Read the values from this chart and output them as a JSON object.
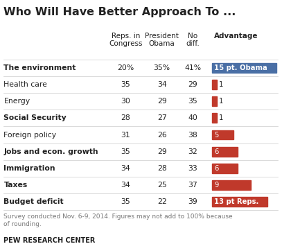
{
  "title": "Who Will Have Better Approach To ...",
  "col_headers": [
    "Reps. in\nCongress",
    "President\nObama",
    "No\ndiff.",
    "Advantage"
  ],
  "rows": [
    {
      "issue": "The environment",
      "reps": "20%",
      "obama": "35%",
      "nodiff": "41%",
      "adv_val": 15,
      "adv_label": "15 pt. Obama",
      "adv_favor": "obama"
    },
    {
      "issue": "Health care",
      "reps": "35",
      "obama": "34",
      "nodiff": "29",
      "adv_val": 1,
      "adv_label": "1",
      "adv_favor": "reps"
    },
    {
      "issue": "Energy",
      "reps": "30",
      "obama": "29",
      "nodiff": "35",
      "adv_val": 1,
      "adv_label": "1",
      "adv_favor": "reps"
    },
    {
      "issue": "Social Security",
      "reps": "28",
      "obama": "27",
      "nodiff": "40",
      "adv_val": 1,
      "adv_label": "1",
      "adv_favor": "reps"
    },
    {
      "issue": "Foreign policy",
      "reps": "31",
      "obama": "26",
      "nodiff": "38",
      "adv_val": 5,
      "adv_label": "5",
      "adv_favor": "reps"
    },
    {
      "issue": "Jobs and econ. growth",
      "reps": "35",
      "obama": "29",
      "nodiff": "32",
      "adv_val": 6,
      "adv_label": "6",
      "adv_favor": "reps"
    },
    {
      "issue": "Immigration",
      "reps": "34",
      "obama": "28",
      "nodiff": "33",
      "adv_val": 6,
      "adv_label": "6",
      "adv_favor": "reps"
    },
    {
      "issue": "Taxes",
      "reps": "34",
      "obama": "25",
      "nodiff": "37",
      "adv_val": 9,
      "adv_label": "9",
      "adv_favor": "reps"
    },
    {
      "issue": "Budget deficit",
      "reps": "35",
      "obama": "22",
      "nodiff": "39",
      "adv_val": 13,
      "adv_label": "13 pt Reps.",
      "adv_favor": "reps"
    }
  ],
  "obama_color": "#4a6fa5",
  "reps_color": "#c0392b",
  "footnote": "Survey conducted Nov. 6-9, 2014. Figures may not add to 100% because\nof rounding.",
  "source": "PEW RESEARCH CENTER",
  "bg_color": "#ffffff",
  "text_color": "#222222",
  "line_color": "#cccccc",
  "bold_issues": [
    "The environment",
    "Social Security",
    "Jobs and econ. growth",
    "Immigration",
    "Taxes",
    "Budget deficit"
  ],
  "max_adv_val": 15
}
